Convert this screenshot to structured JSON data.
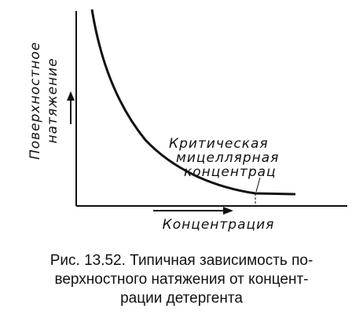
{
  "figure": {
    "y_axis_label": [
      "Поверхностное",
      "натяжение"
    ],
    "x_axis_label": "Концентрация",
    "annotation": [
      "Критическая",
      "мицеллярная",
      "концентрац"
    ],
    "caption": [
      "Рис. 13.52. Типичная зависимость по-",
      "верхностного натяжения от концент-",
      "рации детергента"
    ]
  }
}
